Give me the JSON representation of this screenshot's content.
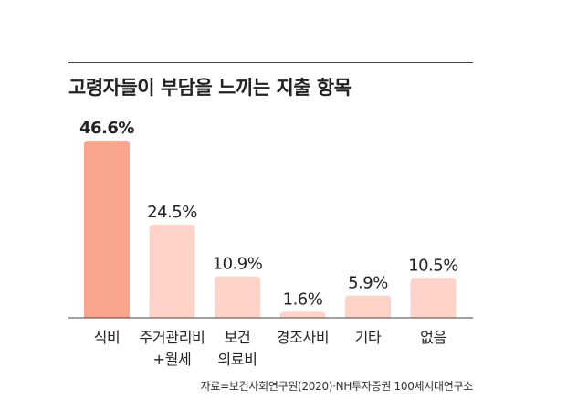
{
  "title": "고령자들이 부담을 느끼는 지출 항목",
  "source": "자료=보건사회연구원(2020)·NH투자증권 100세시대연구소",
  "colors": {
    "highlight_bar": "#F9A48C",
    "normal_bar": "#FDD3C7",
    "axis": "#444444",
    "text": "#222222"
  },
  "chart_data": {
    "type": "bar",
    "title": "고령자들이 부담을 느끼는 지출 항목",
    "xlabel": "",
    "ylabel": "",
    "categories": [
      [
        "식비"
      ],
      [
        "주거관리비",
        "+월세"
      ],
      [
        "보건",
        "의료비"
      ],
      [
        "경조사비"
      ],
      [
        "기타"
      ],
      [
        "없음"
      ]
    ],
    "values": [
      46.6,
      24.5,
      10.9,
      1.6,
      5.9,
      10.5
    ],
    "value_labels": [
      "46.6%",
      "24.5%",
      "10.9%",
      "1.6%",
      "5.9%",
      "10.5%"
    ],
    "highlight_index": 0,
    "ylim": [
      0,
      46.6
    ],
    "grid": false,
    "legend": "none"
  }
}
